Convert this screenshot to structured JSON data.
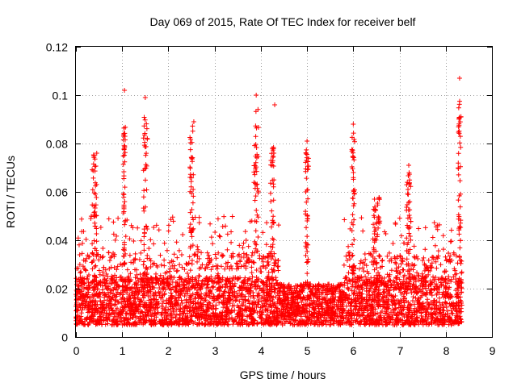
{
  "chart_data": {
    "type": "scatter",
    "title": "Day 069 of 2015, Rate Of TEC Index for receiver belf",
    "xlabel": "GPS time / hours",
    "ylabel": "ROTI / TECUs",
    "xlim": [
      0,
      9
    ],
    "ylim": [
      0,
      0.12
    ],
    "xticks": [
      0,
      1,
      2,
      3,
      4,
      5,
      6,
      7,
      8,
      9
    ],
    "yticks": [
      0,
      0.02,
      0.04,
      0.06,
      0.08,
      0.1,
      0.12
    ],
    "xtick_labels": [
      "0",
      "1",
      "2",
      "3",
      "4",
      "5",
      "6",
      "7",
      "8",
      "9"
    ],
    "ytick_labels": [
      "0",
      "0.02",
      "0.04",
      "0.06",
      "0.08",
      "0.1",
      "0.12"
    ],
    "grid": true,
    "marker": "+",
    "series_color": "#ff0000",
    "series": [
      {
        "name": "ROTI",
        "x_range": [
          0,
          8.35
        ],
        "baseline_range": [
          0.005,
          0.025
        ],
        "notable_points": [
          {
            "x": 1.05,
            "y": 0.102
          },
          {
            "x": 1.5,
            "y": 0.099
          },
          {
            "x": 3.9,
            "y": 0.1
          },
          {
            "x": 4.3,
            "y": 0.096
          },
          {
            "x": 8.3,
            "y": 0.107
          },
          {
            "x": 6.0,
            "y": 0.088
          },
          {
            "x": 2.55,
            "y": 0.089
          },
          {
            "x": 5.0,
            "y": 0.081
          },
          {
            "x": 0.45,
            "y": 0.076
          },
          {
            "x": 7.2,
            "y": 0.071
          }
        ],
        "spikes": [
          {
            "x": 0.4,
            "peak": 0.076,
            "width": 0.1
          },
          {
            "x": 1.05,
            "peak": 0.09,
            "width": 0.05
          },
          {
            "x": 1.5,
            "peak": 0.092,
            "width": 0.09
          },
          {
            "x": 2.5,
            "peak": 0.088,
            "width": 0.08
          },
          {
            "x": 3.9,
            "peak": 0.096,
            "width": 0.1
          },
          {
            "x": 4.25,
            "peak": 0.08,
            "width": 0.08
          },
          {
            "x": 5.0,
            "peak": 0.078,
            "width": 0.07
          },
          {
            "x": 6.0,
            "peak": 0.085,
            "width": 0.06
          },
          {
            "x": 6.5,
            "peak": 0.06,
            "width": 0.15
          },
          {
            "x": 7.2,
            "peak": 0.068,
            "width": 0.1
          },
          {
            "x": 8.3,
            "peak": 0.1,
            "width": 0.06
          }
        ]
      }
    ]
  }
}
